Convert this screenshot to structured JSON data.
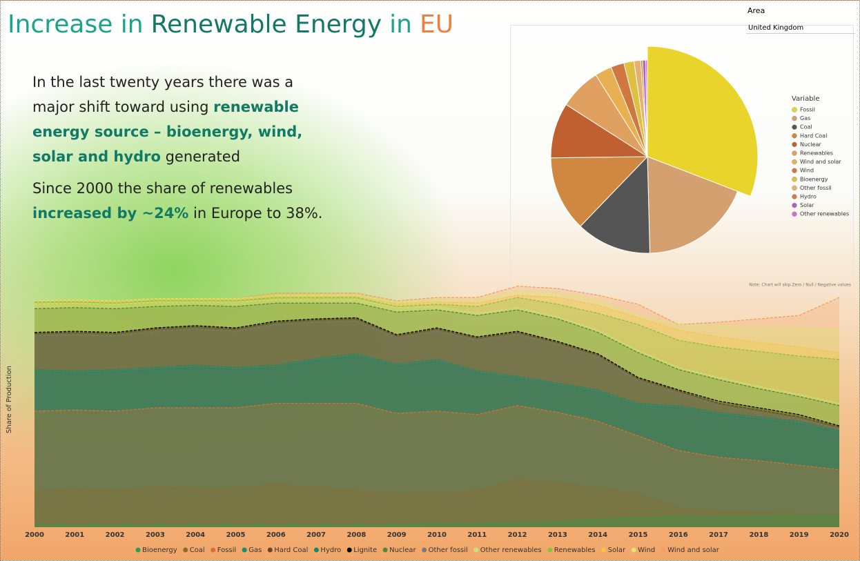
{
  "header": {
    "title": [
      {
        "text": "Increase in",
        "color": "#1aa58a"
      },
      {
        "text": "Renewable Energy",
        "color": "#127a64"
      },
      {
        "text": "in",
        "color": "#1aa58a"
      },
      {
        "text": "EU",
        "color": "#f08040"
      }
    ]
  },
  "intro": {
    "paragraphs": [
      [
        {
          "text": "In the last twenty years there was a major shift toward using ",
          "emphasis": false
        },
        {
          "text": "renewable energy source – bioenergy, wind, solar and hydro",
          "emphasis": true
        },
        {
          "text": " generated",
          "emphasis": false
        }
      ],
      [
        {
          "text": "Since 2000 the share of renewables ",
          "emphasis": false
        },
        {
          "text": "increased by ~24%",
          "emphasis": true
        },
        {
          "text": " in Europe to 38%.",
          "emphasis": false
        }
      ]
    ]
  },
  "slicer": {
    "label": "Area",
    "value": "United Kingdom"
  },
  "chart_data": [
    {
      "type": "area",
      "y_label": "Share of Production",
      "ylim": [
        0,
        110
      ],
      "x": [
        2000,
        2001,
        2002,
        2003,
        2004,
        2005,
        2006,
        2007,
        2008,
        2009,
        2010,
        2011,
        2012,
        2013,
        2014,
        2015,
        2016,
        2017,
        2018,
        2019,
        2020
      ],
      "xlim": [
        2000,
        2020
      ],
      "xticks": [
        2000,
        2001,
        2002,
        2003,
        2004,
        2005,
        2006,
        2007,
        2008,
        2009,
        2010,
        2011,
        2012,
        2013,
        2014,
        2015,
        2016,
        2017,
        2018,
        2019,
        2020
      ],
      "series": [
        {
          "name": "Bioenergy",
          "color": "#2e9e4a",
          "values": [
            1,
            1,
            1,
            1,
            1,
            1,
            1,
            1,
            1,
            1,
            1.5,
            1.5,
            2,
            2.5,
            3.5,
            4,
            4.5,
            4.5,
            5,
            5.5,
            5.5
          ]
        },
        {
          "name": "Coal",
          "color": "#8b6a2a",
          "values": [
            15.6,
            17,
            16,
            17.5,
            17,
            17,
            19,
            17.5,
            16,
            14.5,
            15,
            16,
            21,
            19.5,
            17.5,
            14.5,
            8.5,
            7,
            6.5,
            6,
            6
          ]
        },
        {
          "name": "Fossil",
          "color": "#d8722e",
          "values": [
            51.5,
            52,
            51.5,
            53,
            53,
            53,
            55,
            55,
            55,
            50.5,
            51.5,
            50,
            54,
            51,
            47,
            40.5,
            34,
            31,
            29.5,
            27.5,
            25.5
          ]
        },
        {
          "name": "Gas",
          "color": "#1e8a6a",
          "values": [
            70,
            69.5,
            70,
            71,
            72,
            71,
            72,
            75,
            77,
            72.5,
            74.5,
            69.5,
            67,
            64,
            61,
            55,
            54,
            51,
            49,
            47,
            43
          ]
        },
        {
          "name": "Hard Coal",
          "color": "#6b4423",
          "values": [
            86,
            86.5,
            86,
            88,
            89,
            88,
            91,
            92,
            92.5,
            85,
            88,
            84,
            86.5,
            82,
            76.5,
            66,
            60.5,
            55,
            52,
            49,
            44.5
          ]
        },
        {
          "name": "Hydro",
          "color": "#138a70",
          "values": [
            69,
            68.5,
            69,
            70,
            71,
            70,
            71,
            74,
            76,
            71.5,
            73.5,
            68.5,
            66,
            63,
            60,
            54,
            53,
            50,
            48,
            46,
            42
          ]
        },
        {
          "name": "Lignite",
          "color": "#000000",
          "values": [
            86.5,
            87,
            86.5,
            88.5,
            89.5,
            88.5,
            91.5,
            92.5,
            93,
            85.5,
            88.5,
            84.5,
            87,
            82.5,
            77,
            66.5,
            61,
            56,
            53,
            50,
            45
          ]
        },
        {
          "name": "Nuclear",
          "color": "#4f8a3a",
          "values": [
            97,
            97.5,
            97,
            98,
            98.5,
            98,
            99.5,
            99.5,
            99.5,
            95.5,
            96.5,
            94,
            96.5,
            92.5,
            86.5,
            77.5,
            70,
            65.5,
            61.5,
            58,
            54
          ]
        },
        {
          "name": "Other fossil",
          "color": "#7a7a7a",
          "values": [
            85,
            85.5,
            85,
            87,
            88,
            87,
            90,
            91,
            91.5,
            84,
            87,
            83,
            85.5,
            81,
            75.5,
            65,
            59.5,
            54,
            51,
            48,
            43.5
          ]
        },
        {
          "name": "Other renewables",
          "color": "#c9e27a",
          "values": [
            99,
            99.5,
            99,
            100,
            100,
            100,
            101,
            101,
            101,
            97.5,
            98,
            95,
            97.5,
            93.5,
            87.5,
            78.5,
            71,
            66.5,
            62.5,
            59,
            55
          ]
        },
        {
          "name": "Renewables",
          "color": "#8cbf3f",
          "values": [
            100,
            100,
            99.5,
            100.5,
            100.5,
            100.5,
            102,
            102,
            102,
            98,
            99,
            98,
            102,
            99,
            95,
            90,
            83,
            80,
            78,
            76,
            74.5
          ]
        },
        {
          "name": "Solar",
          "color": "#f5c542",
          "values": [
            100,
            100.5,
            100,
            101,
            101,
            101,
            102.5,
            102.5,
            102.5,
            99,
            100,
            99.5,
            103,
            102,
            98.5,
            93,
            87.5,
            84.5,
            82,
            80,
            77.5
          ]
        },
        {
          "name": "Wind",
          "color": "#d9e86a",
          "values": [
            100.5,
            101,
            100.5,
            101.5,
            101.5,
            101.5,
            103,
            103,
            103,
            100,
            101,
            101,
            105,
            104,
            101,
            94,
            90,
            89.5,
            89,
            88.5,
            87.7
          ]
        },
        {
          "name": "Wind and solar",
          "color": "#f0a060",
          "values": [
            100.5,
            101,
            100.5,
            101.5,
            101.5,
            101.5,
            104,
            104,
            104,
            100.5,
            102,
            102,
            107,
            106,
            103,
            99,
            90,
            91,
            92.5,
            94,
            102
          ]
        }
      ]
    },
    {
      "type": "pie",
      "legend_title": "Variable",
      "note": "Note: Chart will skip Zero / Null / Negative values",
      "categories": [
        "Fossil",
        "Gas",
        "Coal",
        "Hard Coal",
        "Nuclear",
        "Renewables",
        "Wind and solar",
        "Wind",
        "Bioenergy",
        "Other fossil",
        "Hydro",
        "Solar",
        "Other renewables"
      ],
      "values": [
        30.6,
        18.6,
        12.5,
        12.5,
        9.2,
        6.9,
        2.8,
        2.2,
        1.7,
        1.1,
        0.3,
        0.5,
        0.3
      ],
      "colors": [
        "#e8d42a",
        "#d4a070",
        "#555555",
        "#d08840",
        "#c06030",
        "#e0a060",
        "#e8b050",
        "#d07840",
        "#e0c040",
        "#e8b070",
        "#d08040",
        "#b060c0",
        "#d070d0"
      ]
    }
  ]
}
